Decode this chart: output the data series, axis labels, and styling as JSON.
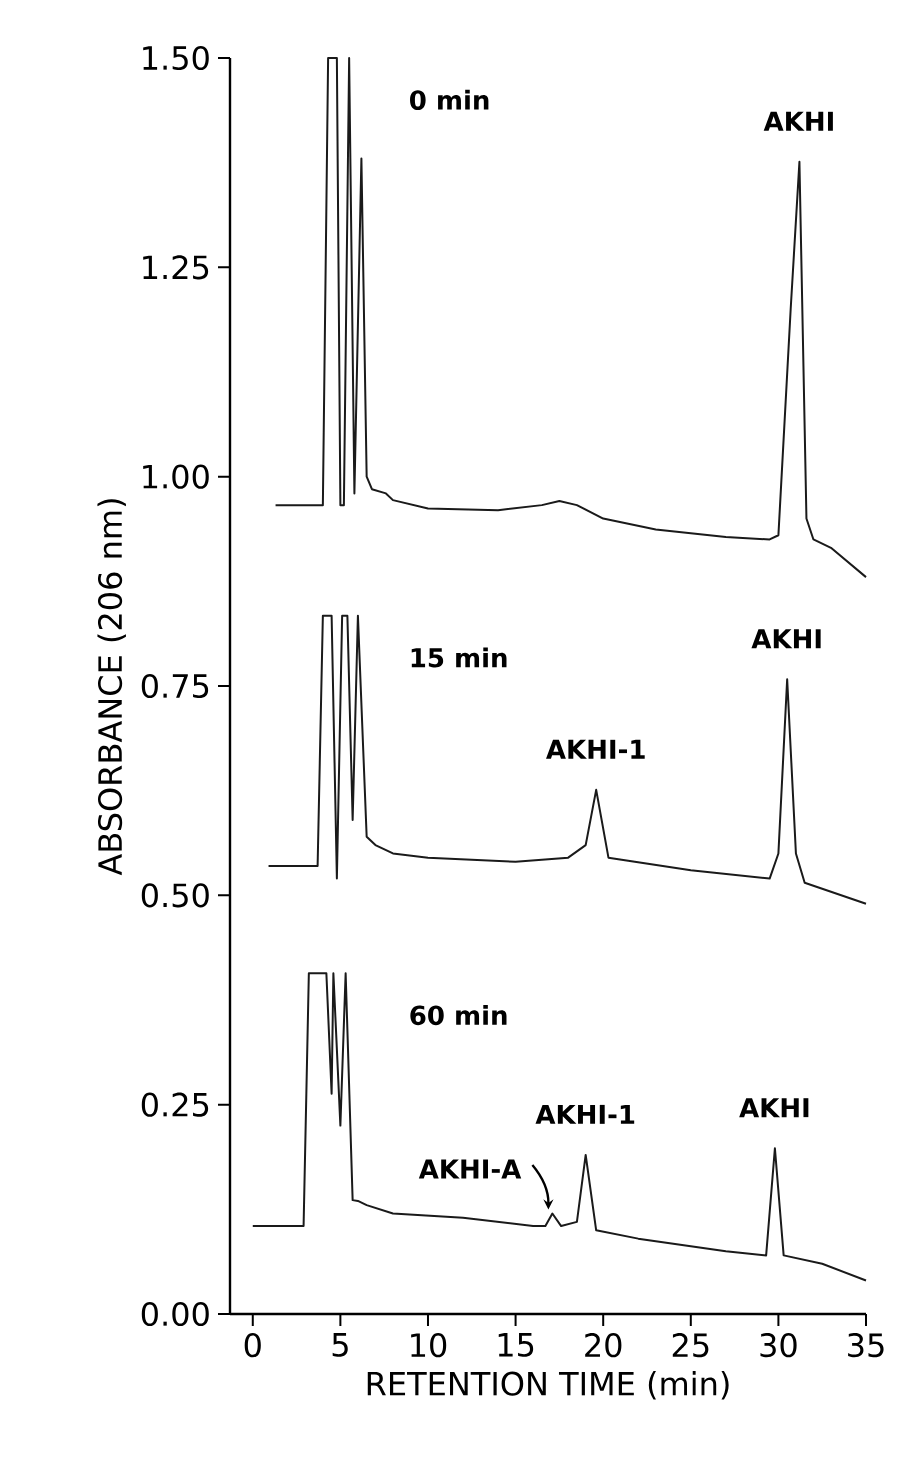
{
  "chart_data": {
    "type": "line",
    "xlabel": "RETENTION TIME  (min)",
    "ylabel": "ABSORBANCE  (206 nm)",
    "xlim": [
      -1.3,
      35
    ],
    "ylim": [
      0,
      1.5
    ],
    "xticks": [
      0,
      5,
      10,
      15,
      20,
      25,
      30,
      35
    ],
    "yticks": [
      {
        "value": 0,
        "label": "0.00"
      },
      {
        "value": 0.25,
        "label": "0.25"
      },
      {
        "value": 0.5,
        "label": "0.50"
      },
      {
        "value": 0.75,
        "label": "0.75"
      },
      {
        "value": 1.0,
        "label": "1.00"
      },
      {
        "value": 1.25,
        "label": "1.25"
      },
      {
        "value": 1.5,
        "label": "1.50"
      }
    ],
    "grid": false,
    "legend": false,
    "marker": "none",
    "line_style": "solid",
    "series": [
      {
        "name": "0 min",
        "color": "#1a1a1a",
        "x": [
          1.3,
          4.0,
          4.3,
          4.8,
          5.0,
          5.2,
          5.5,
          5.8,
          6.2,
          6.5,
          6.8,
          7.6,
          8,
          10,
          14,
          16.5,
          17.5,
          18.5,
          20,
          23,
          27,
          29.5,
          30,
          30.7,
          31.2,
          31.6,
          32,
          33,
          35
        ],
        "values": [
          0.966,
          0.966,
          1.5,
          1.5,
          0.966,
          0.966,
          1.5,
          0.98,
          1.38,
          1.0,
          0.985,
          0.98,
          0.972,
          0.962,
          0.96,
          0.966,
          0.971,
          0.966,
          0.95,
          0.937,
          0.928,
          0.925,
          0.93,
          1.2,
          1.376,
          0.95,
          0.925,
          0.915,
          0.88
        ]
      },
      {
        "name": "15 min",
        "color": "#1a1a1a",
        "x": [
          0.9,
          3.7,
          4.0,
          4.5,
          4.8,
          5.1,
          5.4,
          5.7,
          6.0,
          6.5,
          7,
          8,
          10,
          15,
          18,
          19,
          19.6,
          20.3,
          25,
          29.5,
          30,
          30.5,
          31,
          31.5,
          35
        ],
        "values": [
          0.535,
          0.535,
          0.834,
          0.834,
          0.52,
          0.834,
          0.834,
          0.59,
          0.834,
          0.57,
          0.56,
          0.55,
          0.545,
          0.54,
          0.545,
          0.56,
          0.626,
          0.545,
          0.53,
          0.52,
          0.55,
          0.758,
          0.55,
          0.515,
          0.49
        ]
      },
      {
        "name": "60 min",
        "color": "#1a1a1a",
        "x": [
          0,
          2.9,
          3.2,
          4.2,
          4.5,
          4.6,
          5.0,
          5.3,
          5.7,
          6.0,
          6.5,
          8,
          12,
          16,
          16.7,
          17.1,
          17.6,
          18.5,
          19.0,
          19.6,
          22,
          27,
          29.3,
          29.8,
          30.3,
          32.5,
          35
        ],
        "values": [
          0.105,
          0.105,
          0.407,
          0.407,
          0.263,
          0.407,
          0.225,
          0.407,
          0.136,
          0.135,
          0.13,
          0.12,
          0.115,
          0.105,
          0.105,
          0.12,
          0.105,
          0.11,
          0.19,
          0.1,
          0.09,
          0.075,
          0.07,
          0.198,
          0.07,
          0.06,
          0.04
        ]
      }
    ],
    "annotations": [
      {
        "text": "AKHI",
        "x": 31.2,
        "y": 1.376
      },
      {
        "text": "AKHI",
        "x": 30.5,
        "y": 0.758
      },
      {
        "text": "AKHI-1",
        "x": 19.6,
        "y": 0.626
      },
      {
        "text": "AKHI-A",
        "x": 17.1,
        "y": 0.12
      },
      {
        "text": "AKHI-1",
        "x": 19.0,
        "y": 0.19
      },
      {
        "text": "AKHI",
        "x": 29.8,
        "y": 0.198
      }
    ]
  }
}
